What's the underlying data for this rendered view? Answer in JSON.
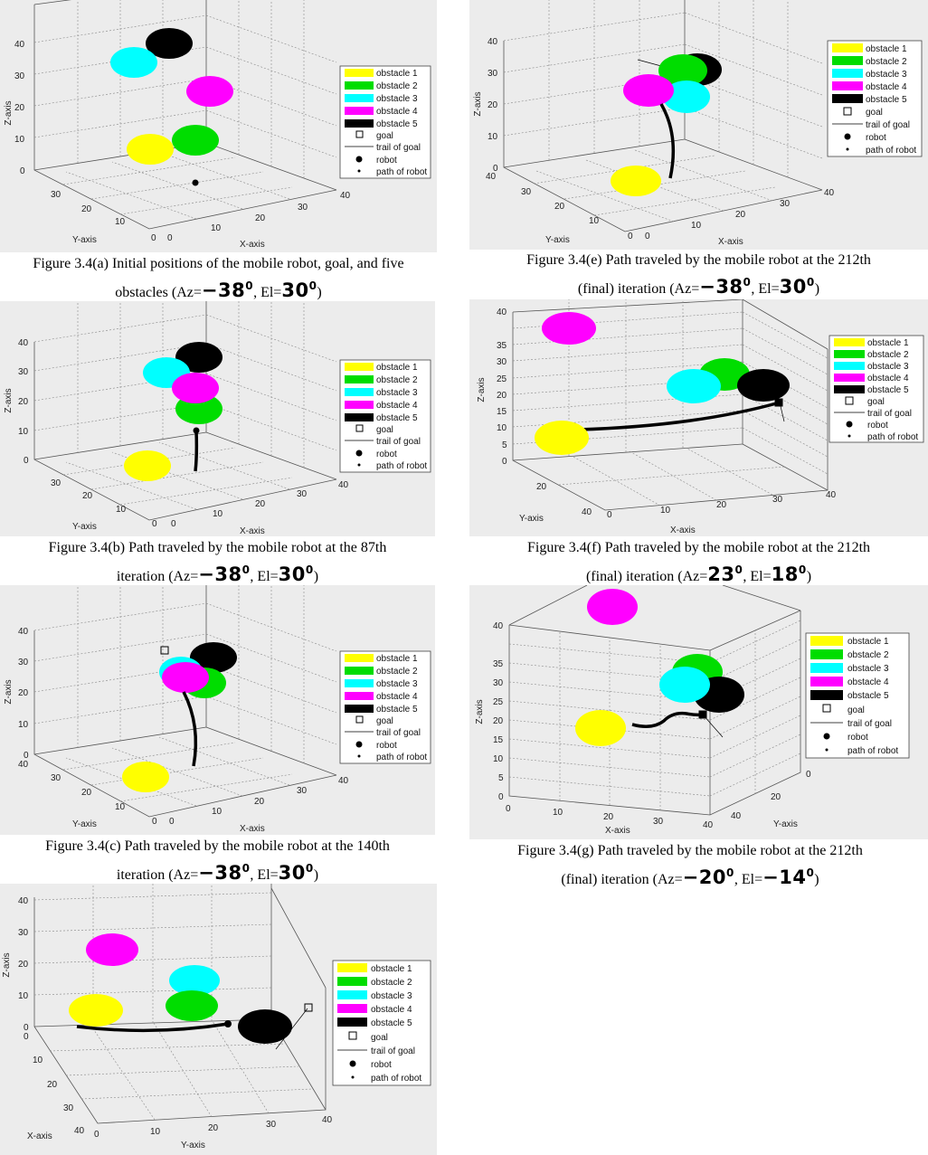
{
  "legend_items": [
    {
      "key": "obstacle1",
      "label": "obstacle 1",
      "color": "#ffff00"
    },
    {
      "key": "obstacle2",
      "label": "obstacle 2",
      "color": "#00dd00"
    },
    {
      "key": "obstacle3",
      "label": "obstacle 3",
      "color": "#00ffff"
    },
    {
      "key": "obstacle4",
      "label": "obstacle 4",
      "color": "#ff00ff"
    },
    {
      "key": "obstacle5",
      "label": "obstacle 5",
      "color": "#000000"
    },
    {
      "key": "goal",
      "label": "goal",
      "marker": "square"
    },
    {
      "key": "trail",
      "label": "trail of goal",
      "marker": "line"
    },
    {
      "key": "robot",
      "label": "robot",
      "marker": "dot"
    },
    {
      "key": "path",
      "label": "path of robot",
      "marker": "small-dot"
    }
  ],
  "chart_data": [
    {
      "id": "a",
      "type": "scatter",
      "x_label": "X-axis",
      "y_label": "Y-axis",
      "z_label": "Z-axis",
      "x_ticks": [
        "0",
        "10",
        "20",
        "30",
        "40"
      ],
      "y_ticks": [
        "0",
        "10",
        "20",
        "30"
      ],
      "z_ticks": [
        "0",
        "10",
        "20",
        "30",
        "40"
      ],
      "caption_lines": [
        "Figure 3.4(a) Initial positions of the mobile robot, goal, and five",
        "obstacles (Az=",
        "-38",
        "0",
        ", El=",
        "30",
        "0",
        ")"
      ],
      "caption": {
        "line1": "Figure 3.4(a) Initial positions of the mobile robot, goal, and five",
        "line2_pre": "obstacles (Az=",
        "az": "−38",
        "mid": ", El=",
        "el": "30",
        "post": ")"
      }
    },
    {
      "id": "b",
      "type": "scatter",
      "x_label": "X-axis",
      "y_label": "Y-axis",
      "z_label": "Z-axis",
      "x_ticks": [
        "0",
        "10",
        "20",
        "30",
        "40"
      ],
      "y_ticks": [
        "0",
        "10",
        "20",
        "30"
      ],
      "z_ticks": [
        "0",
        "10",
        "20",
        "30",
        "40"
      ],
      "caption": {
        "line1": "Figure 3.4(b) Path traveled by the mobile robot at the 87th",
        "line2_pre": "iteration (Az=",
        "az": "−38",
        "mid": ", El=",
        "el": "30",
        "post": ")"
      }
    },
    {
      "id": "c",
      "type": "scatter",
      "x_label": "X-axis",
      "y_label": "Y-axis",
      "z_label": "Z-axis",
      "x_ticks": [
        "0",
        "10",
        "20",
        "30",
        "40"
      ],
      "y_ticks": [
        "0",
        "10",
        "20",
        "30",
        "40"
      ],
      "z_ticks": [
        "0",
        "10",
        "20",
        "30",
        "40"
      ],
      "caption": {
        "line1": "Figure 3.4(c) Path traveled by the mobile robot at the 140th",
        "line2_pre": "iteration (Az=",
        "az": "−38",
        "mid": ", El=",
        "el": "30",
        "post": ")"
      }
    },
    {
      "id": "d",
      "type": "scatter",
      "x_label": "X-axis",
      "y_label": "Y-axis",
      "z_label": "Z-axis",
      "x_ticks": [
        "0",
        "10",
        "20",
        "30",
        "40"
      ],
      "y_ticks": [
        "0",
        "10",
        "20",
        "30",
        "40"
      ],
      "z_ticks": [
        "0",
        "10",
        "20",
        "30",
        "40"
      ]
    },
    {
      "id": "e",
      "type": "scatter",
      "x_label": "X-axis",
      "y_label": "Y-axis",
      "z_label": "Z-axis",
      "x_ticks": [
        "0",
        "10",
        "20",
        "30",
        "40"
      ],
      "y_ticks": [
        "0",
        "10",
        "20",
        "30",
        "40"
      ],
      "z_ticks": [
        "0",
        "10",
        "20",
        "30",
        "40"
      ],
      "caption": {
        "line1": "Figure 3.4(e) Path traveled by the mobile robot at the 212th",
        "line2_pre": "(final) iteration (Az=",
        "az": "−38",
        "mid": ", El=",
        "el": "30",
        "post": ")"
      }
    },
    {
      "id": "f",
      "type": "scatter",
      "x_label": "X-axis",
      "y_label": "Y-axis",
      "z_label": "Z-axis",
      "x_ticks": [
        "0",
        "10",
        "20",
        "30",
        "40"
      ],
      "y_ticks": [
        "20",
        "40"
      ],
      "z_ticks": [
        "0",
        "5",
        "10",
        "15",
        "20",
        "25",
        "30",
        "35",
        "40"
      ],
      "caption": {
        "line1": "Figure 3.4(f) Path traveled by the mobile robot at the 212th",
        "line2_pre": "(final) iteration (Az=",
        "az": "23",
        "mid": ", El=",
        "el": "18",
        "post": ")"
      }
    },
    {
      "id": "g",
      "type": "scatter",
      "x_label": "X-axis",
      "y_label": "Y-axis",
      "z_label": "Z-axis",
      "x_ticks": [
        "0",
        "10",
        "20",
        "30",
        "40"
      ],
      "y_ticks": [
        "0",
        "20",
        "40"
      ],
      "z_ticks": [
        "0",
        "5",
        "10",
        "15",
        "20",
        "25",
        "30",
        "35",
        "40"
      ],
      "caption": {
        "line1": "Figure 3.4(g) Path traveled by the mobile robot at the 212th",
        "line2_pre": "(final) iteration (Az=",
        "az": "−20",
        "mid": ", El=",
        "el": "−14",
        "post": ")"
      }
    }
  ]
}
